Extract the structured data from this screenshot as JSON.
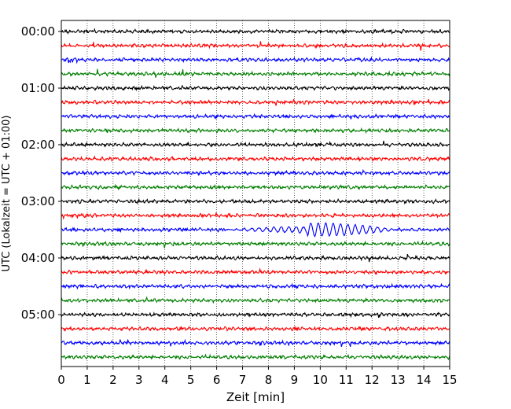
{
  "chart_data": {
    "type": "line",
    "xlabel": "Zeit  [min]",
    "ylabel": "UTC (Lokalzeit = UTC + 01:00)",
    "xlim": [
      0,
      15
    ],
    "x_ticks": [
      "0",
      "1",
      "2",
      "3",
      "4",
      "5",
      "6",
      "7",
      "8",
      "9",
      "10",
      "11",
      "12",
      "13",
      "14",
      "15"
    ],
    "y_ticks": [
      "00:00",
      "01:00",
      "02:00",
      "03:00",
      "04:00",
      "05:00"
    ],
    "grid": "vertical dotted lines at each minute",
    "trace_count": 24,
    "trace_interval_minutes": 15,
    "trace_colors": [
      "#000000",
      "#ff0000",
      "#0000ff",
      "#007f00"
    ],
    "event": {
      "trace_index": 14,
      "trace_start": "03:30",
      "x_start_min": 6.4,
      "x_end_min": 13.0,
      "description": "larger amplitude oscillations"
    }
  }
}
